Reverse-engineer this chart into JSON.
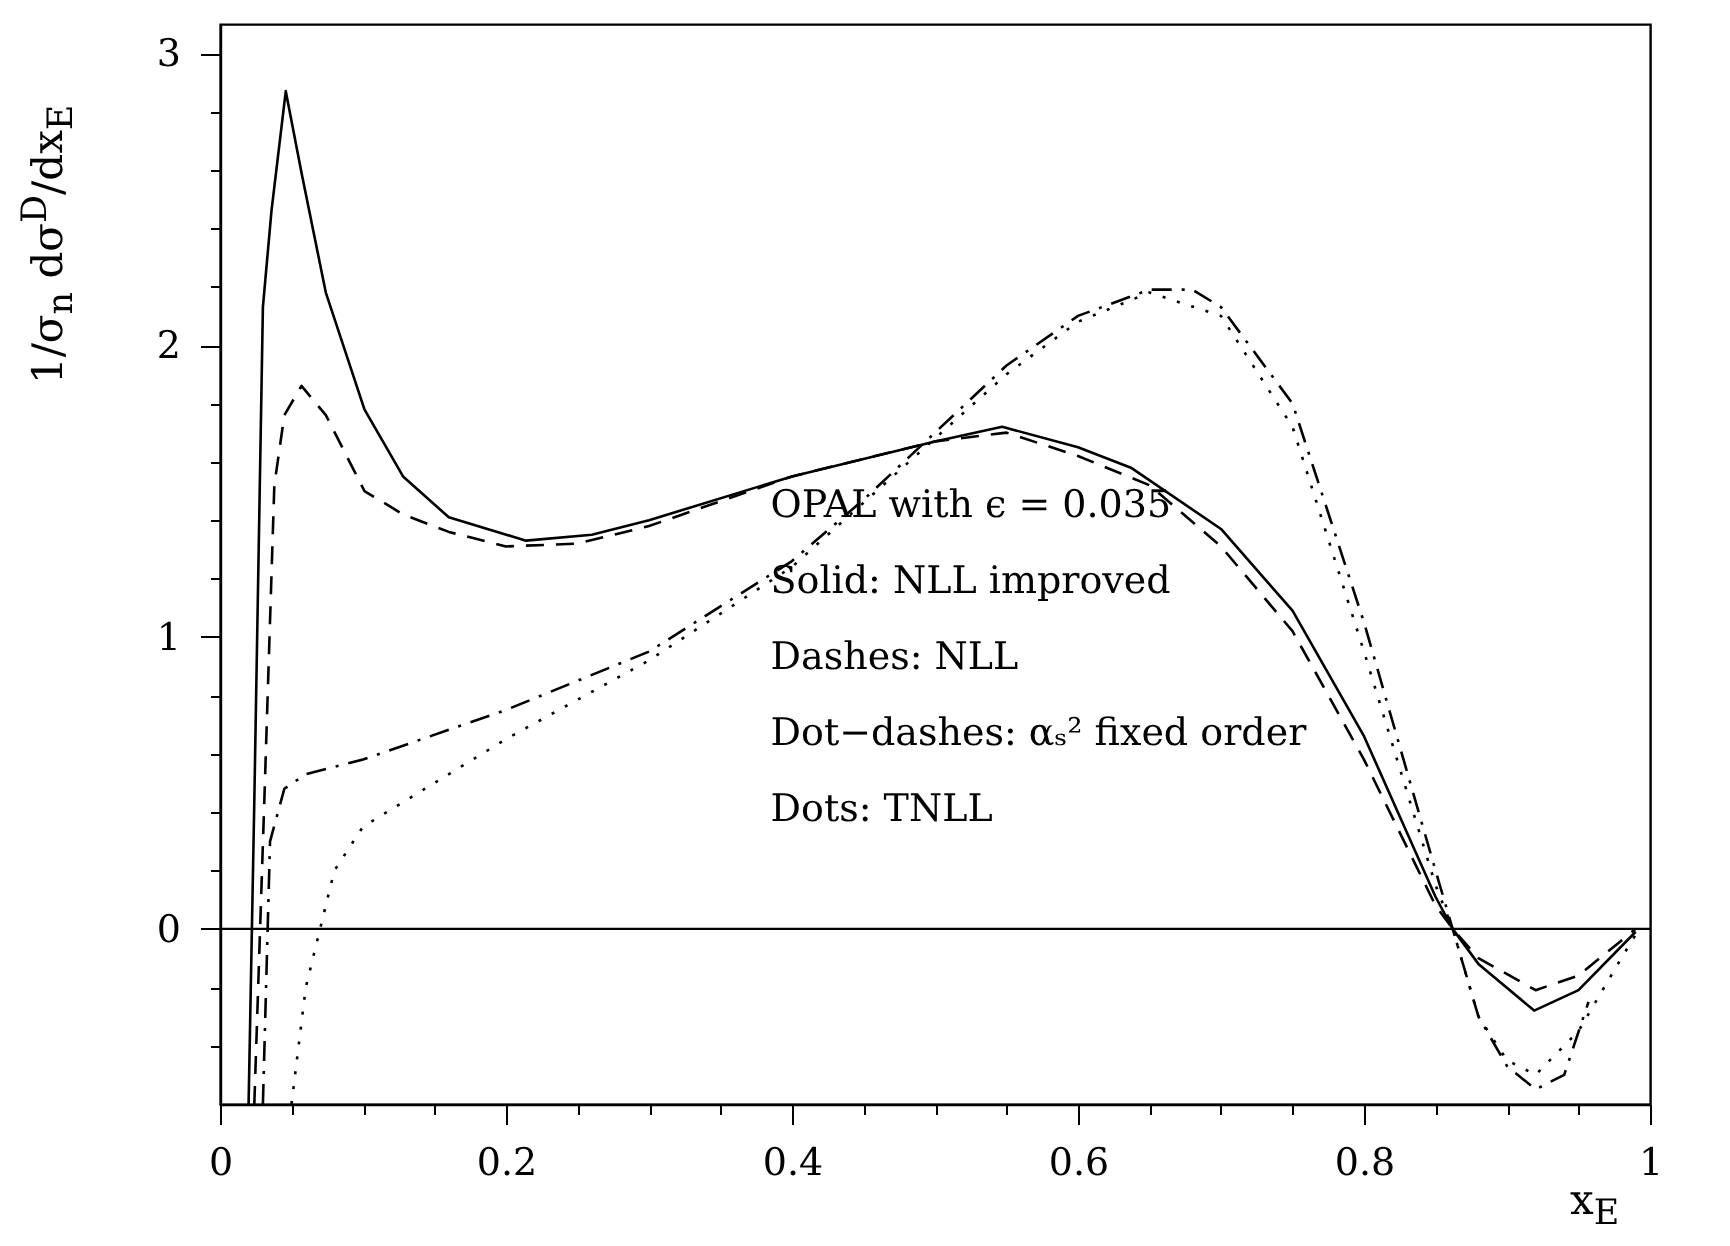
{
  "chart_data": {
    "type": "line",
    "xlabel": "x$_{E}$",
    "ylabel": "1/σ$_{n}$ dσ$^{D}$/dx$_{E}$",
    "xlim": [
      0,
      1
    ],
    "ylim": [
      -0.6,
      3.1
    ],
    "xticks": [
      0,
      {
        "value": 0.05,
        "label": null
      },
      {
        "value": 0.1,
        "label": null
      },
      {
        "value": 0.15,
        "label": null
      },
      0.2,
      {
        "value": 0.25,
        "label": null
      },
      {
        "value": 0.3,
        "label": null
      },
      {
        "value": 0.35,
        "label": null
      },
      0.4,
      {
        "value": 0.45,
        "label": null
      },
      {
        "value": 0.5,
        "label": null
      },
      {
        "value": 0.55,
        "label": null
      },
      0.6,
      {
        "value": 0.65,
        "label": null
      },
      {
        "value": 0.7,
        "label": null
      },
      {
        "value": 0.75,
        "label": null
      },
      0.8,
      {
        "value": 0.85,
        "label": null
      },
      {
        "value": 0.9,
        "label": null
      },
      {
        "value": 0.95,
        "label": null
      },
      1
    ],
    "yticks": [
      {
        "value": -0.4,
        "label": null
      },
      {
        "value": -0.2,
        "label": null
      },
      0,
      {
        "value": 0.2,
        "label": null
      },
      {
        "value": 0.4,
        "label": null
      },
      {
        "value": 0.6,
        "label": null
      },
      {
        "value": 0.8,
        "label": null
      },
      1,
      {
        "value": 1.2,
        "label": null
      },
      {
        "value": 1.4,
        "label": null
      },
      {
        "value": 1.6,
        "label": null
      },
      {
        "value": 1.8,
        "label": null
      },
      2,
      {
        "value": 2.2,
        "label": null
      },
      {
        "value": 2.4,
        "label": null
      },
      {
        "value": 2.6,
        "label": null
      },
      {
        "value": 2.8,
        "label": null
      },
      3
    ],
    "grid": false,
    "marker": "none",
    "ref_lines": [
      {
        "axis": "y",
        "value": 0,
        "color": "#000000",
        "line_style": "solid"
      }
    ],
    "annotations": [
      "OPAL with ϵ = 0.035",
      "Solid: NLL improved",
      "Dashes: NLL",
      "Dot−dashes: αₛ² fixed order",
      "Dots: TNLL"
    ],
    "series": [
      {
        "color": "#000000",
        "line_style": "solid",
        "x": [
          0.02,
          0.024,
          0.03,
          0.036,
          0.046,
          0.057,
          0.074,
          0.101,
          0.128,
          0.16,
          0.214,
          0.26,
          0.3,
          0.4,
          0.5,
          0.547,
          0.6,
          0.637,
          0.7,
          0.75,
          0.8,
          0.85,
          0.862,
          0.88,
          0.919,
          0.95,
          0.99
        ],
        "values": [
          -0.6,
          0.44,
          2.13,
          2.46,
          2.87,
          2.59,
          2.18,
          1.78,
          1.55,
          1.41,
          1.33,
          1.35,
          1.4,
          1.55,
          1.67,
          1.72,
          1.65,
          1.58,
          1.37,
          1.09,
          0.66,
          0.11,
          0,
          -0.12,
          -0.28,
          -0.21,
          -0.01
        ]
      },
      {
        "color": "#000000",
        "line_style": "dashed",
        "x": [
          0.024,
          0.031,
          0.038,
          0.045,
          0.057,
          0.074,
          0.101,
          0.128,
          0.16,
          0.2,
          0.25,
          0.3,
          0.4,
          0.5,
          0.55,
          0.6,
          0.65,
          0.7,
          0.75,
          0.8,
          0.85,
          0.862,
          0.88,
          0.92,
          0.95,
          0.99
        ],
        "values": [
          -0.6,
          0.44,
          1.52,
          1.76,
          1.86,
          1.76,
          1.5,
          1.42,
          1.36,
          1.31,
          1.32,
          1.38,
          1.55,
          1.67,
          1.7,
          1.62,
          1.52,
          1.31,
          1.02,
          0.58,
          0.08,
          0,
          -0.1,
          -0.21,
          -0.16,
          0
        ]
      },
      {
        "color": "#000000",
        "line_style": "dashdot",
        "x": [
          0.03,
          0.035,
          0.045,
          0.06,
          0.1,
          0.2,
          0.3,
          0.4,
          0.45,
          0.5,
          0.55,
          0.6,
          0.65,
          0.68,
          0.7,
          0.75,
          0.8,
          0.85,
          0.862,
          0.88,
          0.9,
          0.92,
          0.94,
          0.957
        ],
        "values": [
          -0.6,
          0.3,
          0.48,
          0.53,
          0.58,
          0.75,
          0.95,
          1.26,
          1.47,
          1.7,
          1.93,
          2.1,
          2.19,
          2.19,
          2.13,
          1.8,
          1.05,
          0.2,
          0,
          -0.3,
          -0.47,
          -0.55,
          -0.5,
          -0.25
        ]
      },
      {
        "color": "#000000",
        "line_style": "dotted",
        "x": [
          0.05,
          0.06,
          0.08,
          0.1,
          0.15,
          0.2,
          0.3,
          0.4,
          0.5,
          0.55,
          0.6,
          0.65,
          0.7,
          0.75,
          0.8,
          0.85,
          0.862,
          0.88,
          0.9,
          0.92,
          0.95,
          0.98,
          0.99
        ],
        "values": [
          -0.6,
          -0.2,
          0.2,
          0.35,
          0.5,
          0.65,
          0.92,
          1.24,
          1.68,
          1.9,
          2.08,
          2.18,
          2.1,
          1.72,
          0.95,
          0.15,
          0,
          -0.3,
          -0.45,
          -0.5,
          -0.35,
          -0.1,
          -0.02
        ]
      }
    ]
  }
}
